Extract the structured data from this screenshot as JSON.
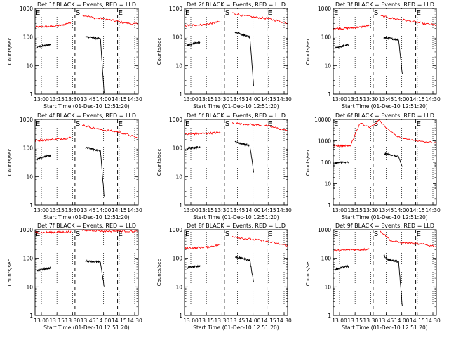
{
  "chart_data": [
    {
      "type": "line",
      "title": "Det 1f BLACK = Events, RED = LLD",
      "ylabel": "Counts/sec",
      "xlabel": "Start Time (01-Dec-10 12:51:20)",
      "y_scale": "log",
      "ylim": [
        1,
        1000
      ],
      "y_ticks": [
        "1",
        "10",
        "100",
        "1000"
      ],
      "x_ticks": [
        "13:00",
        "13:15",
        "13:30",
        "13:45",
        "14:00",
        "14:15",
        "14:30"
      ],
      "xlim_minutes": [
        0,
        100
      ],
      "grid": "dotted verticals",
      "markers": [
        {
          "label": "E",
          "t": 0
        },
        {
          "label": "S",
          "t": 38.7
        },
        {
          "label": "E",
          "t": 80
        }
      ],
      "series": [
        {
          "color": "#ff0000",
          "segments": [
            {
              "t_start": 0,
              "t_end": 34.7,
              "values": [
                220,
                230,
                240,
                260,
                330
              ]
            },
            {
              "t_start": 45.7,
              "t_end": 100,
              "values": [
                600,
                470,
                430,
                360,
                300,
                280
              ]
            }
          ]
        },
        {
          "color": "#000000",
          "segments": [
            {
              "t_start": 2,
              "t_end": 15,
              "values": [
                45,
                48,
                50,
                52,
                55
              ]
            },
            {
              "t_start": 49,
              "t_end": 67,
              "values": [
                100,
                100,
                95,
                90,
                85,
                1
              ]
            }
          ]
        }
      ]
    },
    {
      "type": "line",
      "title": "Det 2f BLACK = Events, RED = LLD",
      "ylabel": "Counts/sec",
      "xlabel": "Start Time (01-Dec-10 12:51:20)",
      "y_scale": "log",
      "ylim": [
        1,
        1000
      ],
      "y_ticks": [
        "1",
        "10",
        "100",
        "1000"
      ],
      "x_ticks": [
        "13:00",
        "13:15",
        "13:30",
        "13:45",
        "14:00",
        "14:15",
        "14:30"
      ],
      "xlim_minutes": [
        0,
        100
      ],
      "grid": "dotted verticals",
      "markers": [
        {
          "label": "E",
          "t": 0
        },
        {
          "label": "S",
          "t": 38.7
        },
        {
          "label": "E",
          "t": 80
        }
      ],
      "series": [
        {
          "color": "#ff0000",
          "segments": [
            {
              "t_start": 0,
              "t_end": 34.7,
              "values": [
                250,
                260,
                270,
                300,
                340
              ]
            },
            {
              "t_start": 45.7,
              "t_end": 100,
              "values": [
                700,
                560,
                500,
                450,
                380,
                300
              ]
            }
          ]
        },
        {
          "color": "#000000",
          "segments": [
            {
              "t_start": 2,
              "t_end": 15,
              "values": [
                50,
                55,
                60,
                62,
                65
              ]
            },
            {
              "t_start": 49,
              "t_end": 67,
              "values": [
                140,
                135,
                120,
                110,
                100,
                2
              ]
            }
          ]
        }
      ]
    },
    {
      "type": "line",
      "title": "Det 3f BLACK = Events, RED = LLD",
      "ylabel": "Counts/sec",
      "xlabel": "Start Time (01-Dec-10 12:51:20)",
      "y_scale": "log",
      "ylim": [
        1,
        1000
      ],
      "y_ticks": [
        "1",
        "10",
        "100",
        "1000"
      ],
      "x_ticks": [
        "13:00",
        "13:15",
        "13:30",
        "13:45",
        "14:00",
        "14:15",
        "14:30"
      ],
      "xlim_minutes": [
        0,
        100
      ],
      "grid": "dotted verticals",
      "markers": [
        {
          "label": "E",
          "t": 0
        },
        {
          "label": "S",
          "t": 38.7
        },
        {
          "label": "E",
          "t": 80
        }
      ],
      "series": [
        {
          "color": "#ff0000",
          "segments": [
            {
              "t_start": 0,
              "t_end": 34.7,
              "values": [
                200,
                200,
                210,
                220,
                250
              ]
            },
            {
              "t_start": 45.7,
              "t_end": 100,
              "values": [
                550,
                450,
                400,
                340,
                290,
                260
              ]
            }
          ]
        },
        {
          "color": "#000000",
          "segments": [
            {
              "t_start": 2,
              "t_end": 15,
              "values": [
                40,
                44,
                48,
                50,
                55
              ]
            },
            {
              "t_start": 49,
              "t_end": 67,
              "values": [
                95,
                92,
                88,
                85,
                80,
                5
              ]
            }
          ]
        }
      ]
    },
    {
      "type": "line",
      "title": "Det 4f BLACK = Events, RED = LLD",
      "ylabel": "Counts/sec",
      "xlabel": "Start Time (01-Dec-10 12:51:20)",
      "y_scale": "log",
      "ylim": [
        1,
        1000
      ],
      "y_ticks": [
        "1",
        "10",
        "100",
        "1000"
      ],
      "x_ticks": [
        "13:00",
        "13:15",
        "13:30",
        "13:45",
        "14:00",
        "14:15",
        "14:30"
      ],
      "xlim_minutes": [
        0,
        100
      ],
      "grid": "dotted verticals",
      "markers": [
        {
          "label": "E",
          "t": 0
        },
        {
          "label": "S",
          "t": 38.7
        },
        {
          "label": "E",
          "t": 80
        }
      ],
      "series": [
        {
          "color": "#ff0000",
          "segments": [
            {
              "t_start": 0,
              "t_end": 34.7,
              "values": [
                180,
                190,
                200,
                210,
                230
              ]
            },
            {
              "t_start": 45.7,
              "t_end": 100,
              "values": [
                650,
                500,
                420,
                380,
                300,
                220
              ]
            }
          ]
        },
        {
          "color": "#000000",
          "segments": [
            {
              "t_start": 2,
              "t_end": 15,
              "values": [
                40,
                45,
                50,
                52,
                55
              ]
            },
            {
              "t_start": 49,
              "t_end": 67,
              "values": [
                100,
                98,
                90,
                85,
                80,
                2
              ]
            }
          ]
        }
      ]
    },
    {
      "type": "line",
      "title": "Det 5f BLACK = Events, RED = LLD",
      "ylabel": "Counts/sec",
      "xlabel": "Start Time (01-Dec-10 12:51:20)",
      "y_scale": "log",
      "ylim": [
        1,
        1000
      ],
      "y_ticks": [
        "1",
        "10",
        "100",
        "1000"
      ],
      "x_ticks": [
        "13:00",
        "13:15",
        "13:30",
        "13:45",
        "14:00",
        "14:15",
        "14:30"
      ],
      "xlim_minutes": [
        0,
        100
      ],
      "grid": "dotted verticals",
      "markers": [
        {
          "label": "E",
          "t": 0
        },
        {
          "label": "S",
          "t": 38.7
        },
        {
          "label": "E",
          "t": 80
        }
      ],
      "series": [
        {
          "color": "#ff0000",
          "segments": [
            {
              "t_start": 0,
              "t_end": 34.7,
              "values": [
                300,
                310,
                320,
                330,
                350
              ]
            },
            {
              "t_start": 45.7,
              "t_end": 100,
              "values": [
                750,
                700,
                650,
                600,
                500,
                400
              ]
            }
          ]
        },
        {
          "color": "#000000",
          "segments": [
            {
              "t_start": 2,
              "t_end": 15,
              "values": [
                90,
                100,
                100,
                105,
                110
              ]
            },
            {
              "t_start": 49,
              "t_end": 67,
              "values": [
                160,
                150,
                140,
                130,
                120,
                15
              ]
            }
          ]
        }
      ]
    },
    {
      "type": "line",
      "title": "Det 6f BLACK = Events, RED = LLD",
      "ylabel": "Counts/sec",
      "xlabel": "Start Time (01-Dec-10 12:51:20)",
      "y_scale": "log",
      "ylim": [
        1,
        10000
      ],
      "y_ticks": [
        "1",
        "10",
        "100",
        "1000",
        "10000"
      ],
      "x_ticks": [
        "13:00",
        "13:15",
        "13:30",
        "13:45",
        "14:00",
        "14:15",
        "14:30"
      ],
      "xlim_minutes": [
        0,
        100
      ],
      "grid": "dotted verticals",
      "markers": [
        {
          "label": "E",
          "t": 0
        },
        {
          "label": "S",
          "t": 38.7
        },
        {
          "label": "E",
          "t": 80
        }
      ],
      "series": [
        {
          "color": "#ff0000",
          "segments": [
            {
              "t_start": 0,
              "t_end": 17,
              "values": [
                600,
                600,
                600,
                600,
                600
              ]
            },
            {
              "t_start": 17,
              "t_end": 100,
              "values": [
                650,
                7000,
                4000,
                9000,
                3000,
                1500,
                1200,
                1000,
                900,
                800
              ]
            }
          ]
        },
        {
          "color": "#000000",
          "segments": [
            {
              "t_start": 2,
              "t_end": 15,
              "values": [
                90,
                100,
                100,
                100,
                100
              ]
            },
            {
              "t_start": 49,
              "t_end": 67,
              "values": [
                250,
                240,
                220,
                200,
                180,
                60
              ]
            }
          ]
        }
      ]
    },
    {
      "type": "line",
      "title": "Det 7f BLACK = Events, RED = LLD",
      "ylabel": "Counts/sec",
      "xlabel": "Start Time (01-Dec-10 12:51:20)",
      "y_scale": "log",
      "ylim": [
        1,
        1000
      ],
      "y_ticks": [
        "1",
        "10",
        "100",
        "1000"
      ],
      "x_ticks": [
        "13:00",
        "13:15",
        "13:30",
        "13:45",
        "14:00",
        "14:15",
        "14:30"
      ],
      "xlim_minutes": [
        0,
        100
      ],
      "grid": "dotted verticals",
      "markers": [
        {
          "label": "E",
          "t": 0
        },
        {
          "label": "S",
          "t": 38.7
        },
        {
          "label": "E",
          "t": 80
        }
      ],
      "series": [
        {
          "color": "#ff0000",
          "segments": [
            {
              "t_start": 0,
              "t_end": 34.7,
              "values": [
                800,
                800,
                820,
                830,
                850
              ]
            },
            {
              "t_start": 45.7,
              "t_end": 100,
              "values": [
                950,
                950,
                900,
                900,
                900,
                850
              ]
            }
          ]
        },
        {
          "color": "#000000",
          "segments": [
            {
              "t_start": 2,
              "t_end": 15,
              "values": [
                35,
                40,
                42,
                45,
                45
              ]
            },
            {
              "t_start": 49,
              "t_end": 67,
              "values": [
                80,
                80,
                78,
                75,
                72,
                10
              ]
            }
          ]
        }
      ]
    },
    {
      "type": "line",
      "title": "Det 8f BLACK = Events, RED = LLD",
      "ylabel": "Counts/sec",
      "xlabel": "Start Time (01-Dec-10 12:51:20)",
      "y_scale": "log",
      "ylim": [
        1,
        1000
      ],
      "y_ticks": [
        "1",
        "10",
        "100",
        "1000"
      ],
      "x_ticks": [
        "13:00",
        "13:15",
        "13:30",
        "13:45",
        "14:00",
        "14:15",
        "14:30"
      ],
      "xlim_minutes": [
        0,
        100
      ],
      "grid": "dotted verticals",
      "markers": [
        {
          "label": "E",
          "t": 0
        },
        {
          "label": "S",
          "t": 38.7
        },
        {
          "label": "E",
          "t": 80
        }
      ],
      "series": [
        {
          "color": "#ff0000",
          "segments": [
            {
              "t_start": 0,
              "t_end": 34.7,
              "values": [
                220,
                230,
                240,
                260,
                300
              ]
            },
            {
              "t_start": 45.7,
              "t_end": 100,
              "values": [
                600,
                500,
                450,
                400,
                330,
                280
              ]
            }
          ]
        },
        {
          "color": "#000000",
          "segments": [
            {
              "t_start": 2,
              "t_end": 15,
              "values": [
                45,
                50,
                50,
                52,
                55
              ]
            },
            {
              "t_start": 49,
              "t_end": 67,
              "values": [
                110,
                105,
                98,
                90,
                85,
                15
              ]
            }
          ]
        }
      ]
    },
    {
      "type": "line",
      "title": "Det 9f BLACK = Events, RED = LLD",
      "ylabel": "Counts/sec",
      "xlabel": "Start Time (01-Dec-10 12:51:20)",
      "y_scale": "log",
      "ylim": [
        1,
        1000
      ],
      "y_ticks": [
        "1",
        "10",
        "100",
        "1000"
      ],
      "x_ticks": [
        "13:00",
        "13:15",
        "13:30",
        "13:45",
        "14:00",
        "14:15",
        "14:30"
      ],
      "xlim_minutes": [
        0,
        100
      ],
      "grid": "dotted verticals",
      "markers": [
        {
          "label": "E",
          "t": 0
        },
        {
          "label": "S",
          "t": 38.7
        },
        {
          "label": "E",
          "t": 80
        }
      ],
      "series": [
        {
          "color": "#ff0000",
          "segments": [
            {
              "t_start": 0,
              "t_end": 34.7,
              "values": [
                180,
                190,
                200,
                200,
                210
              ]
            },
            {
              "t_start": 45.7,
              "t_end": 100,
              "values": [
                900,
                400,
                350,
                330,
                300,
                260
              ]
            }
          ]
        },
        {
          "color": "#000000",
          "segments": [
            {
              "t_start": 2,
              "t_end": 15,
              "values": [
                40,
                44,
                48,
                50,
                52
              ]
            },
            {
              "t_start": 49,
              "t_end": 67,
              "values": [
                130,
                90,
                85,
                80,
                75,
                2
              ]
            }
          ]
        }
      ]
    }
  ]
}
